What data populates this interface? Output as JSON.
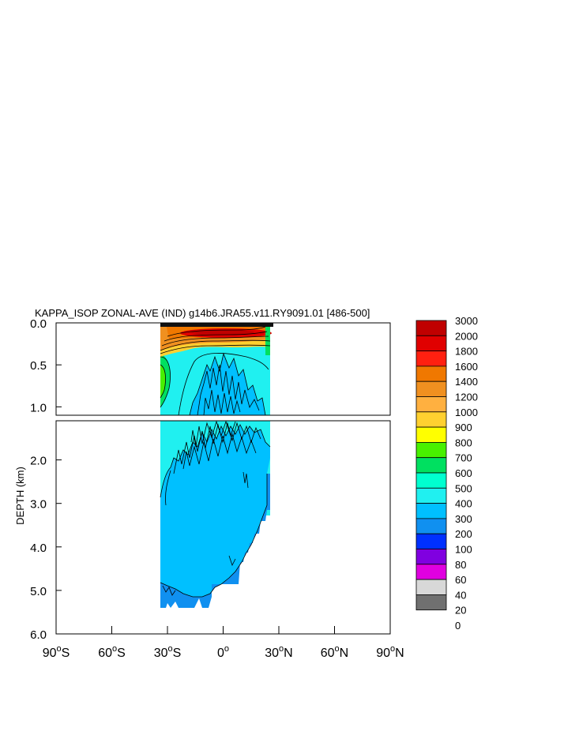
{
  "chart_data": {
    "type": "contour",
    "title": "KAPPA_ISOP ZONAL-AVE (IND) g14b6.JRA55.v11.RY9091.01 [486-500]",
    "ylabel": "DEPTH (km)",
    "xlabel": "",
    "x_ticks": [
      {
        "value": -90,
        "label": "90°S",
        "num": "90",
        "sup": "o",
        "hemi": "S"
      },
      {
        "value": -60,
        "label": "60°S",
        "num": "60",
        "sup": "o",
        "hemi": "S"
      },
      {
        "value": -30,
        "label": "30°S",
        "num": "30",
        "sup": "o",
        "hemi": "S"
      },
      {
        "value": 0,
        "label": "0°",
        "num": "0",
        "sup": "o",
        "hemi": ""
      },
      {
        "value": 30,
        "label": "30°N",
        "num": "30",
        "sup": "o",
        "hemi": "N"
      },
      {
        "value": 60,
        "label": "60°N",
        "num": "60",
        "sup": "o",
        "hemi": "N"
      },
      {
        "value": 90,
        "label": "90°N",
        "num": "90",
        "sup": "o",
        "hemi": "N"
      }
    ],
    "xlim": [
      -90,
      90
    ],
    "upper_panel": {
      "ylim": [
        0,
        1.1
      ],
      "y_ticks": [
        "0.0",
        "0.5",
        "1.0"
      ],
      "y_values": [
        0,
        0.5,
        1.0
      ]
    },
    "lower_panel": {
      "ylim": [
        1.1,
        6.0
      ],
      "y_ticks": [
        "2.0",
        "3.0",
        "4.0",
        "5.0",
        "6.0"
      ],
      "y_values": [
        2,
        3,
        4,
        5,
        6
      ]
    },
    "data_extent": {
      "lon_min": -34,
      "lon_max": 25,
      "max_depth_km": 5.4
    },
    "colorbar": {
      "levels": [
        "3000",
        "2000",
        "1800",
        "1600",
        "1400",
        "1200",
        "1000",
        "900",
        "800",
        "700",
        "600",
        "500",
        "400",
        "300",
        "200",
        "100",
        "80",
        "60",
        "40",
        "20",
        "0"
      ],
      "colors": [
        "#c00000",
        "#e00000",
        "#ff2010",
        "#f07800",
        "#f09020",
        "#ffb040",
        "#ffd030",
        "#ffff00",
        "#48f000",
        "#00e060",
        "#00ffd0",
        "#20f0f0",
        "#00c0ff",
        "#1090f0",
        "#0030ff",
        "#8000e0",
        "#e000e0",
        "#d8d8d8",
        "#707070"
      ]
    }
  }
}
